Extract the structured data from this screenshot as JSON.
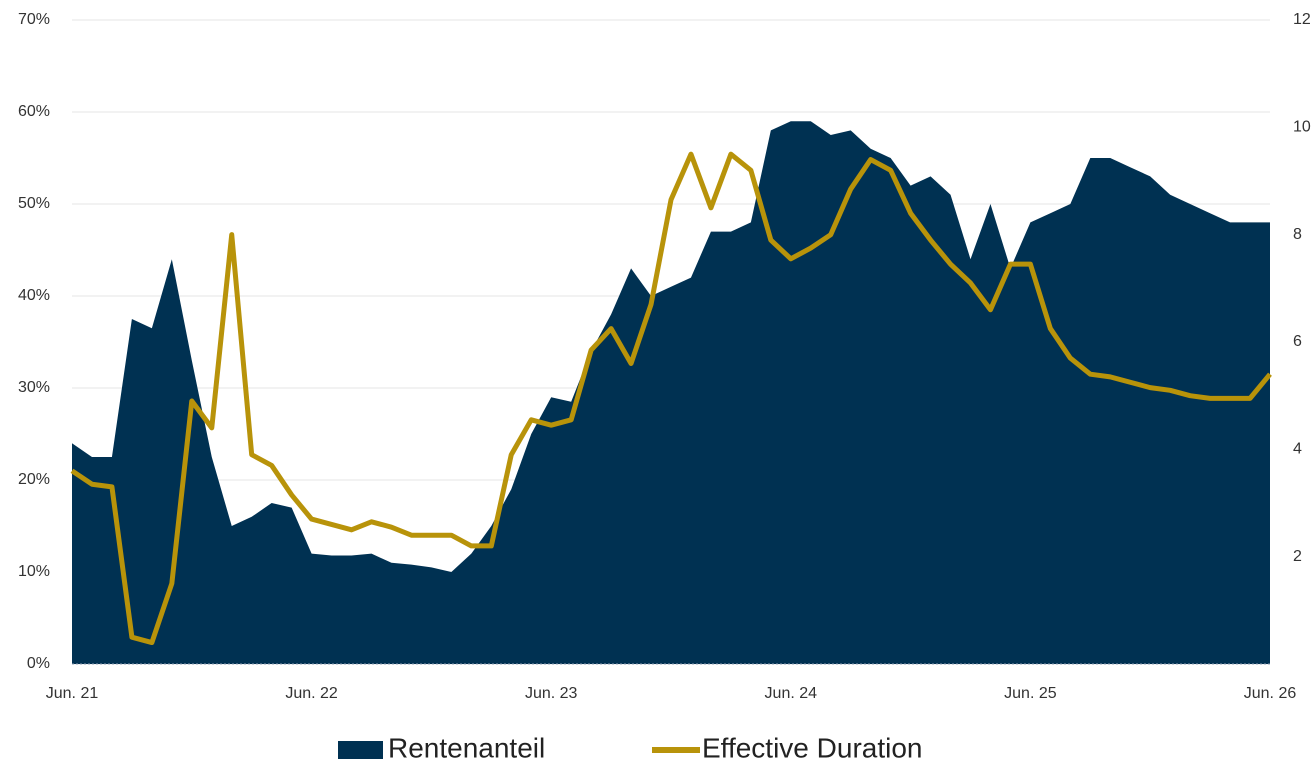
{
  "chart_data": {
    "type": "area_line",
    "x": [
      "2021-06",
      "2021-07",
      "2021-08",
      "2021-09",
      "2021-10",
      "2021-11",
      "2021-12",
      "2022-01",
      "2022-02",
      "2022-03",
      "2022-04",
      "2022-05",
      "2022-06",
      "2022-07",
      "2022-08",
      "2022-09",
      "2022-10",
      "2022-11",
      "2022-12",
      "2023-01",
      "2023-02",
      "2023-03",
      "2023-04",
      "2023-05",
      "2023-06",
      "2023-07",
      "2023-08",
      "2023-09",
      "2023-10",
      "2023-11",
      "2023-12",
      "2024-01",
      "2024-02",
      "2024-03",
      "2024-04",
      "2024-05",
      "2024-06",
      "2024-07",
      "2024-08",
      "2024-09",
      "2024-10",
      "2024-11",
      "2024-12",
      "2025-01",
      "2025-02",
      "2025-03",
      "2025-04",
      "2025-05",
      "2025-06",
      "2025-07",
      "2025-08",
      "2025-09",
      "2025-10",
      "2025-11",
      "2025-12",
      "2026-01",
      "2026-02",
      "2026-03",
      "2026-04",
      "2026-05",
      "2026-06"
    ],
    "xticks": [
      {
        "value": "2021-06",
        "label": "Jun. 21"
      },
      {
        "value": "2022-06",
        "label": "Jun. 22"
      },
      {
        "value": "2023-06",
        "label": "Jun. 23"
      },
      {
        "value": "2024-06",
        "label": "Jun. 24"
      },
      {
        "value": "2025-06",
        "label": "Jun. 25"
      },
      {
        "value": "2026-06",
        "label": "Jun. 26"
      }
    ],
    "ylim": [
      0,
      70
    ],
    "yticks": [
      {
        "value": 0,
        "label": "0%"
      },
      {
        "value": 10,
        "label": "10%"
      },
      {
        "value": 20,
        "label": "20%"
      },
      {
        "value": 30,
        "label": "30%"
      },
      {
        "value": 40,
        "label": "40%"
      },
      {
        "value": 50,
        "label": "50%"
      },
      {
        "value": 60,
        "label": "60%"
      },
      {
        "value": 70,
        "label": "70%"
      }
    ],
    "y2lim": [
      0,
      12
    ],
    "y2ticks": [
      2,
      4,
      6,
      8,
      10,
      12
    ],
    "grid": true,
    "legend": "bottom",
    "series": [
      {
        "name": "Rentenanteil",
        "color": "#003152",
        "kind": "area",
        "values": [
          24,
          22.5,
          22.5,
          37.5,
          36.5,
          44,
          33,
          22.5,
          15,
          16,
          17.5,
          17,
          12,
          11.8,
          11.8,
          12,
          11,
          10.8,
          10.5,
          10,
          12,
          15,
          19,
          25,
          29,
          28.5,
          34,
          38,
          43,
          40,
          41,
          42,
          47,
          47,
          48,
          58,
          59,
          59,
          57.5,
          58,
          56,
          55,
          52,
          53,
          51,
          44,
          50,
          43,
          48,
          49,
          50,
          55,
          55,
          54,
          53,
          51,
          50,
          49,
          48,
          48,
          48
        ]
      },
      {
        "name": "Effective Duration",
        "color": "#b8930a",
        "kind": "line",
        "axis": "y2",
        "values": [
          3.6,
          3.35,
          3.3,
          0.5,
          0.4,
          1.5,
          4.9,
          4.4,
          8.0,
          3.9,
          3.7,
          3.15,
          2.7,
          2.6,
          2.5,
          2.65,
          2.55,
          2.4,
          2.4,
          2.4,
          2.2,
          2.2,
          3.9,
          4.55,
          4.45,
          4.55,
          5.85,
          6.25,
          5.6,
          6.7,
          8.65,
          9.5,
          8.5,
          9.5,
          9.2,
          7.9,
          7.55,
          7.75,
          8.0,
          8.85,
          9.4,
          9.2,
          8.4,
          7.9,
          7.45,
          7.1,
          6.6,
          7.45,
          7.45,
          6.25,
          5.7,
          5.4,
          5.35,
          5.25,
          5.15,
          5.1,
          5.0,
          4.95,
          4.95,
          4.95,
          5.4
        ]
      }
    ]
  }
}
